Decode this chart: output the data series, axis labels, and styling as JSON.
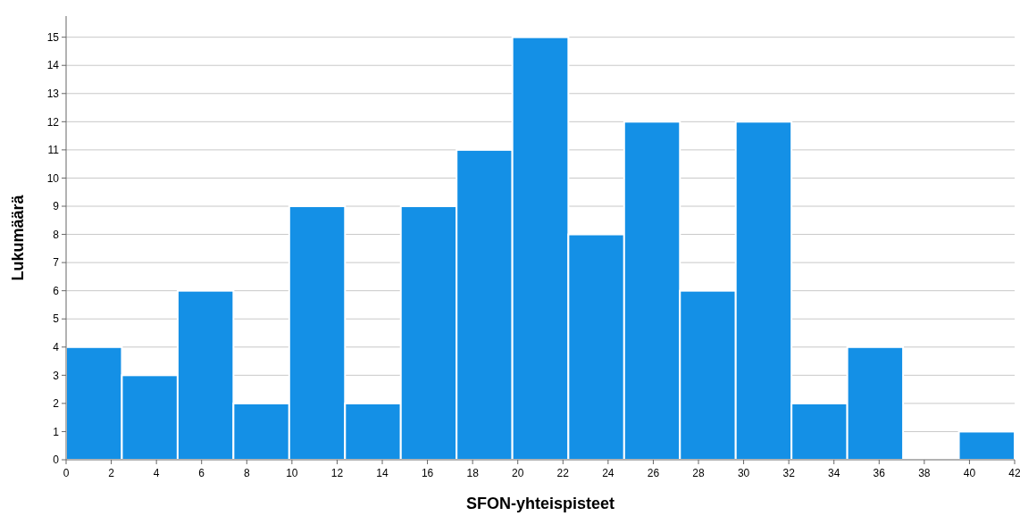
{
  "chart_data": {
    "type": "histogram",
    "xlabel": "SFON-yhteispisteet",
    "ylabel": "Lukumäärä",
    "bins": [
      0,
      2.47,
      4.94,
      7.41,
      9.88,
      12.35,
      14.82,
      17.29,
      19.76,
      22.24,
      24.71,
      27.18,
      29.65,
      32.12,
      34.59,
      37.06,
      39.53,
      42
    ],
    "values": [
      4,
      3,
      6,
      2,
      9,
      2,
      9,
      11,
      15,
      8,
      12,
      6,
      12,
      2,
      4,
      0,
      1
    ],
    "color": "#1490e6",
    "xlim": [
      0,
      42
    ],
    "xticks": [
      0,
      2,
      4,
      6,
      8,
      10,
      12,
      14,
      16,
      18,
      20,
      22,
      24,
      26,
      28,
      30,
      32,
      34,
      36,
      38,
      40,
      42
    ],
    "ylim": [
      0,
      15.75
    ],
    "yticks": [
      0,
      1,
      2,
      3,
      4,
      5,
      6,
      7,
      8,
      9,
      10,
      11,
      12,
      13,
      14,
      15
    ],
    "grid": "y"
  }
}
